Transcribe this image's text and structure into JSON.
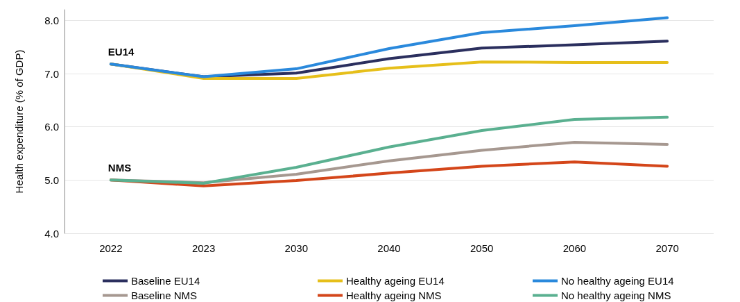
{
  "chart_data": {
    "type": "line",
    "ylabel": "Health expenditure (% of GDP)",
    "categories": [
      "2022",
      "2023",
      "2030",
      "2040",
      "2050",
      "2060",
      "2070"
    ],
    "ylim": [
      4,
      8.2
    ],
    "yticks": [
      {
        "value": 4,
        "label": "4.0"
      },
      {
        "value": 5,
        "label": "5.0"
      },
      {
        "value": 6,
        "label": "6.0"
      },
      {
        "value": 7,
        "label": "7.0"
      },
      {
        "value": 8,
        "label": "8.0"
      }
    ],
    "grid": "y",
    "legend": "bottom",
    "marker": "none",
    "line_style": "solid",
    "annotations": [
      {
        "text": "EU14",
        "x": "2022",
        "y": 7.18
      },
      {
        "text": "NMS",
        "x": "2022",
        "y": 5.0
      }
    ],
    "series": [
      {
        "name": "Baseline EU14",
        "color": "#2b2f5e",
        "values": [
          7.18,
          6.94,
          7.01,
          7.28,
          7.48,
          7.54,
          7.61
        ]
      },
      {
        "name": "Healthy ageing EU14",
        "color": "#e6bf1a",
        "values": [
          7.18,
          6.91,
          6.91,
          7.1,
          7.22,
          7.21,
          7.21
        ]
      },
      {
        "name": "No healthy ageing EU14",
        "color": "#2a89dc",
        "values": [
          7.18,
          6.94,
          7.09,
          7.47,
          7.77,
          7.9,
          8.05
        ]
      },
      {
        "name": "Baseline NMS",
        "color": "#a69890",
        "values": [
          5.0,
          4.95,
          5.11,
          5.36,
          5.56,
          5.71,
          5.67
        ]
      },
      {
        "name": "Healthy ageing NMS",
        "color": "#d4461a",
        "values": [
          5.0,
          4.89,
          4.99,
          5.13,
          5.26,
          5.34,
          5.26
        ]
      },
      {
        "name": "No healthy ageing NMS",
        "color": "#5ab090",
        "values": [
          5.0,
          4.94,
          5.24,
          5.62,
          5.93,
          6.14,
          6.18
        ]
      }
    ]
  }
}
